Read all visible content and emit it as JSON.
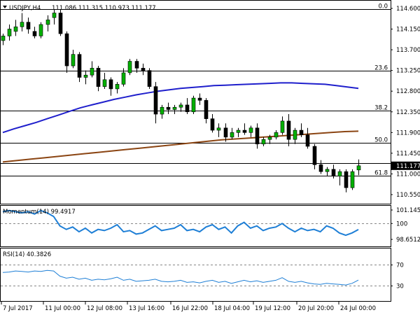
{
  "header": {
    "symbol": "USDJPY,H4",
    "ohlc": "111.086 111.315 110.973 111.177"
  },
  "chart_data": {
    "type": "candlestick",
    "price_axis": {
      "ticks": [
        "114.600",
        "114.150",
        "113.700",
        "113.250",
        "112.800",
        "112.350",
        "111.900",
        "111.450",
        "111.000",
        "110.550"
      ],
      "tick_values": [
        114.6,
        114.15,
        113.7,
        113.25,
        112.8,
        112.35,
        111.9,
        111.45,
        111.0,
        110.55
      ],
      "current_price_label": "111.177",
      "current_price": 111.177
    },
    "fibonacci": [
      {
        "label": "0.0",
        "price": 114.58
      },
      {
        "label": "23.6",
        "price": 113.25
      },
      {
        "label": "38.2",
        "price": 112.38
      },
      {
        "label": "50.0",
        "price": 111.67
      },
      {
        "label": "61.8",
        "price": 110.96
      }
    ],
    "hline_extra": {
      "price": 111.24
    },
    "time_axis": [
      "7 Jul 2017",
      "11 Jul 00:00",
      "12 Jul 08:00",
      "13 Jul 16:00",
      "16 Jul 22:00",
      "18 Jul 04:00",
      "19 Jul 12:00",
      "20 Jul 20:00",
      "24 Jul 00:00"
    ],
    "candles": [
      [
        113.9,
        114.05,
        113.8,
        114.0
      ],
      [
        114.0,
        114.25,
        113.9,
        114.15
      ],
      [
        114.1,
        114.35,
        114.0,
        114.2
      ],
      [
        114.2,
        114.5,
        114.1,
        114.3
      ],
      [
        114.3,
        114.4,
        114.05,
        114.15
      ],
      [
        114.1,
        114.2,
        113.95,
        114.0
      ],
      [
        114.0,
        114.3,
        113.95,
        114.25
      ],
      [
        114.25,
        114.45,
        114.1,
        114.35
      ],
      [
        114.4,
        114.58,
        114.25,
        114.5
      ],
      [
        114.5,
        114.58,
        114.0,
        114.05
      ],
      [
        114.05,
        114.1,
        113.2,
        113.35
      ],
      [
        113.35,
        113.7,
        113.3,
        113.6
      ],
      [
        113.6,
        113.65,
        113.0,
        113.1
      ],
      [
        113.1,
        113.25,
        112.95,
        113.15
      ],
      [
        113.15,
        113.45,
        113.1,
        113.3
      ],
      [
        113.3,
        113.35,
        112.8,
        112.9
      ],
      [
        112.9,
        113.2,
        112.85,
        113.05
      ],
      [
        113.05,
        113.1,
        112.7,
        112.85
      ],
      [
        112.85,
        113.0,
        112.75,
        112.95
      ],
      [
        112.95,
        113.3,
        112.9,
        113.2
      ],
      [
        113.2,
        113.5,
        113.15,
        113.45
      ],
      [
        113.45,
        113.5,
        113.2,
        113.3
      ],
      [
        113.3,
        113.4,
        113.15,
        113.25
      ],
      [
        113.25,
        113.3,
        112.85,
        112.9
      ],
      [
        112.9,
        113.0,
        112.1,
        112.3
      ],
      [
        112.3,
        112.5,
        112.2,
        112.45
      ],
      [
        112.45,
        112.55,
        112.3,
        112.4
      ],
      [
        112.4,
        112.5,
        112.3,
        112.45
      ],
      [
        112.45,
        112.55,
        112.35,
        112.5
      ],
      [
        112.5,
        112.65,
        112.3,
        112.35
      ],
      [
        112.35,
        112.7,
        112.3,
        112.65
      ],
      [
        112.65,
        112.75,
        112.5,
        112.6
      ],
      [
        112.6,
        112.65,
        112.1,
        112.2
      ],
      [
        112.2,
        112.3,
        111.9,
        111.95
      ],
      [
        111.95,
        112.1,
        111.8,
        112.0
      ],
      [
        112.0,
        112.1,
        111.7,
        111.8
      ],
      [
        111.8,
        112.0,
        111.75,
        111.9
      ],
      [
        111.9,
        112.0,
        111.8,
        111.95
      ],
      [
        111.95,
        112.1,
        111.85,
        111.9
      ],
      [
        111.9,
        112.05,
        111.8,
        112.0
      ],
      [
        112.0,
        112.1,
        111.55,
        111.65
      ],
      [
        111.65,
        111.8,
        111.6,
        111.75
      ],
      [
        111.75,
        111.85,
        111.65,
        111.8
      ],
      [
        111.8,
        111.95,
        111.75,
        111.9
      ],
      [
        111.9,
        112.25,
        111.85,
        112.15
      ],
      [
        112.15,
        112.3,
        111.6,
        111.75
      ],
      [
        111.75,
        112.0,
        111.65,
        111.95
      ],
      [
        111.95,
        112.1,
        111.8,
        111.85
      ],
      [
        111.85,
        112.0,
        111.55,
        111.6
      ],
      [
        111.6,
        111.65,
        111.1,
        111.2
      ],
      [
        111.2,
        111.3,
        111.0,
        111.05
      ],
      [
        111.05,
        111.15,
        110.95,
        111.1
      ],
      [
        111.1,
        111.2,
        110.9,
        110.95
      ],
      [
        110.95,
        111.1,
        110.75,
        111.05
      ],
      [
        111.05,
        111.1,
        110.6,
        110.7
      ],
      [
        110.7,
        111.1,
        110.65,
        111.05
      ],
      [
        111.086,
        111.315,
        110.973,
        111.177
      ]
    ],
    "series": [
      {
        "name": "MA100",
        "color": "#1f1fcc",
        "values": [
          111.9,
          111.98,
          112.05,
          112.12,
          112.2,
          112.28,
          112.36,
          112.44,
          112.5,
          112.56,
          112.62,
          112.67,
          112.72,
          112.76,
          112.8,
          112.83,
          112.86,
          112.88,
          112.9,
          112.92,
          112.93,
          112.94,
          112.95,
          112.96,
          112.97,
          112.98,
          112.98,
          112.97,
          112.96,
          112.95,
          112.92,
          112.89,
          112.86
        ]
      },
      {
        "name": "MA200",
        "color": "#8b4513",
        "values": [
          111.26,
          111.29,
          111.32,
          111.35,
          111.38,
          111.41,
          111.44,
          111.47,
          111.5,
          111.53,
          111.56,
          111.59,
          111.62,
          111.65,
          111.68,
          111.71,
          111.74,
          111.76,
          111.78,
          111.8,
          111.82,
          111.84,
          111.86,
          111.88,
          111.9,
          111.92,
          111.93
        ]
      }
    ],
    "momentum": {
      "label": "Momentum(14) 99.4917",
      "ticks": [
        "101.1450",
        "100",
        "98.6512"
      ],
      "tick_values": [
        101.145,
        100.0,
        98.6512
      ],
      "values": [
        101.0,
        101.1,
        101.0,
        100.9,
        101.0,
        100.8,
        101.1,
        100.9,
        100.6,
        99.8,
        99.5,
        99.7,
        99.3,
        99.6,
        99.2,
        99.5,
        99.4,
        99.6,
        99.9,
        99.3,
        99.4,
        99.1,
        99.2,
        99.5,
        99.8,
        99.4,
        99.5,
        99.6,
        99.9,
        99.4,
        99.5,
        99.3,
        99.7,
        99.9,
        99.5,
        99.7,
        99.2,
        99.8,
        100.1,
        99.6,
        99.8,
        99.4,
        99.6,
        99.7,
        100.0,
        99.6,
        99.3,
        99.6,
        99.4,
        99.5,
        99.3,
        99.8,
        99.6,
        99.2,
        99.0,
        99.2,
        99.49
      ]
    },
    "rsi": {
      "label": "RSI(14) 40.3826",
      "ticks": [
        "70",
        "30"
      ],
      "tick_values": [
        70,
        30
      ],
      "values": [
        55,
        56,
        58,
        57,
        56,
        58,
        57,
        59,
        58,
        48,
        44,
        46,
        42,
        44,
        40,
        42,
        41,
        43,
        46,
        40,
        42,
        38,
        39,
        40,
        42,
        38,
        37,
        38,
        40,
        36,
        37,
        35,
        38,
        40,
        36,
        38,
        34,
        37,
        40,
        37,
        39,
        36,
        38,
        40,
        45,
        38,
        36,
        38,
        35,
        33,
        32,
        34,
        33,
        32,
        31,
        34,
        40.38
      ]
    }
  }
}
